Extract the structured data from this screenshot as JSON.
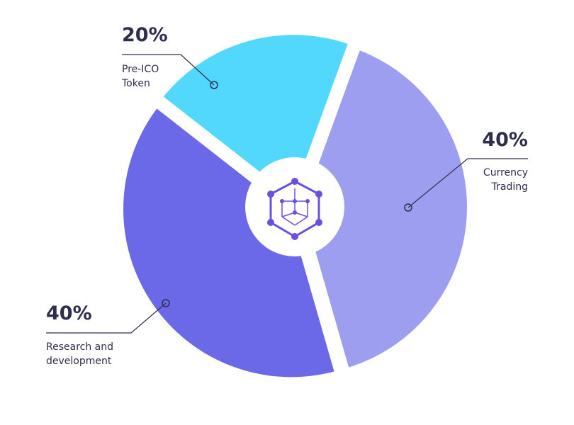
{
  "chart_data": {
    "type": "pie",
    "categories": [
      "Currency Trading",
      "Research and development",
      "Pre-ICO Token"
    ],
    "values": [
      40,
      40,
      20
    ],
    "value_labels": [
      "40%",
      "40%",
      "20%"
    ],
    "colors": [
      "#9e9ef0",
      "#6b69e8",
      "#52d8fc"
    ]
  }
}
